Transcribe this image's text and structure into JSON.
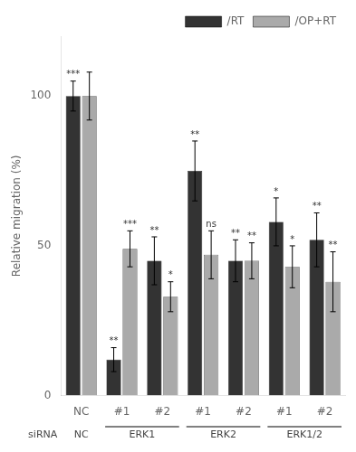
{
  "chart_data": {
    "type": "bar",
    "y_label": "Relative migration (%)",
    "categories": [
      "NC",
      "#1",
      "#2",
      "#1",
      "#2",
      "#1",
      "#2"
    ],
    "annotations": [
      "siRNA",
      "NC",
      "ERK1",
      "ERK2",
      "ERK1/2"
    ],
    "series": [
      {
        "name": "/RT",
        "color": "#333333",
        "values": [
          100,
          12,
          45,
          75,
          45,
          58,
          52
        ],
        "errors": [
          5,
          4,
          8,
          10,
          7,
          8,
          9
        ],
        "significance": [
          "***",
          "**",
          "**",
          "**",
          "**",
          "*",
          "**"
        ]
      },
      {
        "name": "/OP+RT",
        "color": "#aaaaaa",
        "values": [
          100,
          49,
          33,
          47,
          45,
          43,
          38
        ],
        "errors": [
          8,
          6,
          5,
          8,
          6,
          7,
          10
        ],
        "significance": [
          null,
          "***",
          "*",
          "ns",
          "**",
          "*",
          "**"
        ]
      }
    ],
    "ylim": [
      0,
      120
    ],
    "yticks": [
      0,
      50,
      100
    ],
    "grid": false,
    "legend": "upper right"
  }
}
